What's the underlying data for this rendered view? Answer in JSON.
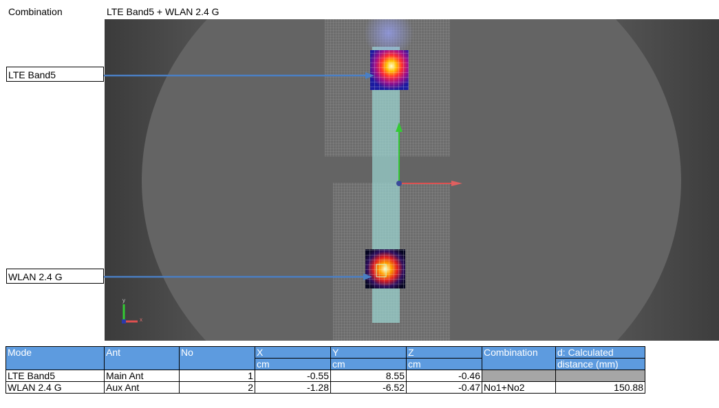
{
  "header": {
    "label": "Combination",
    "value": "LTE Band5 + WLAN 2.4 G"
  },
  "callouts": [
    {
      "label": "LTE Band5"
    },
    {
      "label": "WLAN 2.4 G"
    }
  ],
  "axes_triad": {
    "x": "x",
    "y": "y"
  },
  "colors": {
    "header_fill": "#5d9bdf",
    "arrow": "#4a7fc4",
    "grey_cell": "#a6a6a6",
    "y_axis": "#33cc33",
    "x_axis": "#e05050"
  },
  "table": {
    "headers": [
      "Mode",
      "Ant",
      "No",
      "X",
      "Y",
      "Z",
      "Combination",
      "d: Calculated"
    ],
    "units": [
      "",
      "",
      "",
      "cm",
      "cm",
      "cm",
      "",
      "distance (mm)"
    ],
    "rows": [
      [
        "LTE Band5",
        "Main Ant",
        "1",
        "-0.55",
        "8.55",
        "-0.46",
        "",
        ""
      ],
      [
        "WLAN 2.4 G",
        "Aux Ant",
        "2",
        "-1.28",
        "-6.52",
        "-0.47",
        "No1+No2",
        "150.88"
      ]
    ]
  }
}
